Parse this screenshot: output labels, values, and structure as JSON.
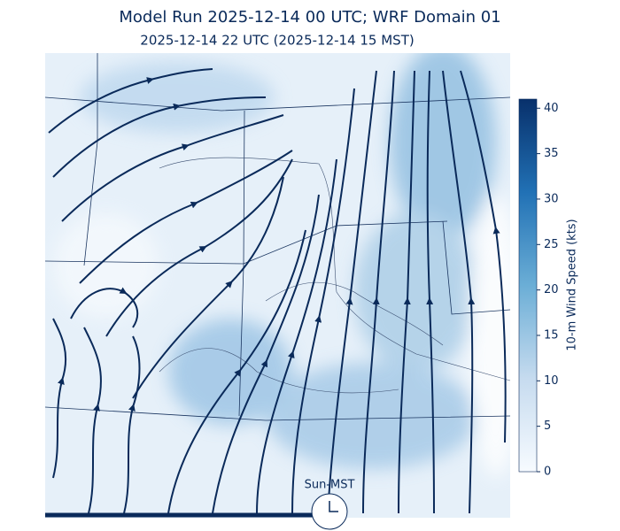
{
  "header": {
    "title": "Model Run 2025-12-14 00 UTC; WRF Domain 01",
    "subtitle": "2025-12-14 22 UTC  (2025-12-14 15 MST)"
  },
  "colorbar": {
    "label": "10-m Wind Speed (kts)",
    "lim": [
      0,
      41
    ],
    "ticks": [
      0,
      5,
      10,
      15,
      20,
      25,
      30,
      35,
      40
    ]
  },
  "clock": {
    "label": "Sun-MST"
  }
}
